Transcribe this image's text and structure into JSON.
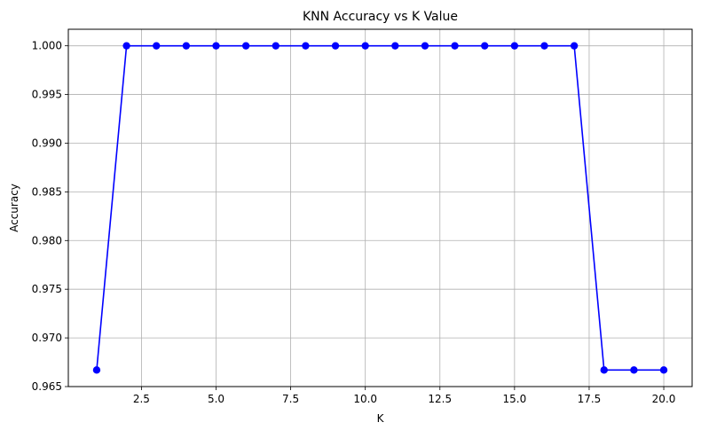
{
  "chart_data": {
    "type": "line",
    "title": "KNN Accuracy vs K Value",
    "xlabel": "K",
    "ylabel": "Accuracy",
    "xlim": [
      0.05,
      20.95
    ],
    "ylim": [
      0.965,
      1.0017
    ],
    "x_ticks": [
      2.5,
      5.0,
      7.5,
      10.0,
      12.5,
      15.0,
      17.5,
      20.0
    ],
    "x_tick_labels": [
      "2.5",
      "5.0",
      "7.5",
      "10.0",
      "12.5",
      "15.0",
      "17.5",
      "20.0"
    ],
    "y_ticks": [
      0.965,
      0.97,
      0.975,
      0.98,
      0.985,
      0.99,
      0.995,
      1.0
    ],
    "y_tick_labels": [
      "0.965",
      "0.970",
      "0.975",
      "0.980",
      "0.985",
      "0.990",
      "0.995",
      "1.000"
    ],
    "grid": true,
    "series": [
      {
        "color": "#0000ff",
        "marker": "circle",
        "x": [
          1,
          2,
          3,
          4,
          5,
          6,
          7,
          8,
          9,
          10,
          11,
          12,
          13,
          14,
          15,
          16,
          17,
          18,
          19,
          20
        ],
        "values": [
          0.9667,
          1.0,
          1.0,
          1.0,
          1.0,
          1.0,
          1.0,
          1.0,
          1.0,
          1.0,
          1.0,
          1.0,
          1.0,
          1.0,
          1.0,
          1.0,
          1.0,
          0.9667,
          0.9667,
          0.9667
        ]
      }
    ]
  }
}
